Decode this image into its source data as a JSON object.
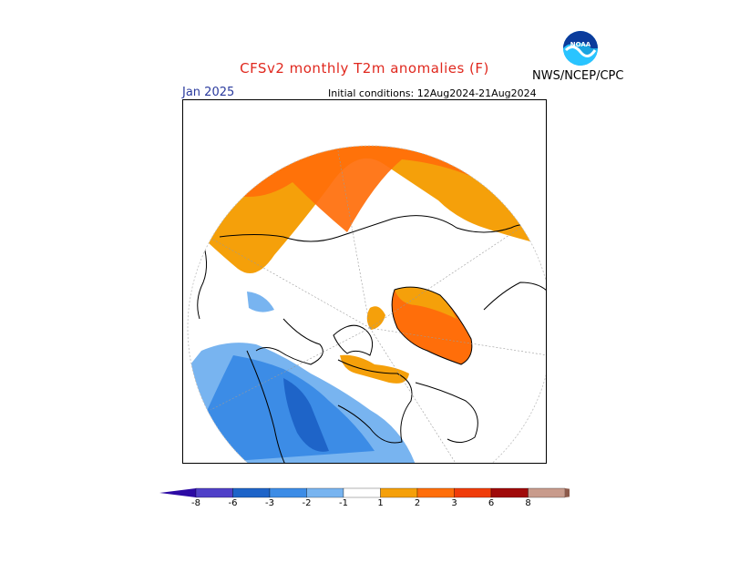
{
  "header": {
    "title": "CFSv2 monthly T2m anomalies (F)",
    "agency": "NWS/NCEP/CPC",
    "logo_text": "NOAA"
  },
  "map": {
    "month": "Jan 2025",
    "initial_conditions": "Initial conditions: 12Aug2024-21Aug2024",
    "projection": "north polar stereographic"
  },
  "legend": {
    "labels": [
      "-8",
      "-6",
      "-3",
      "-2",
      "-1",
      "1",
      "2",
      "3",
      "6",
      "8"
    ],
    "colors": [
      "#2c0aa4",
      "#5040c8",
      "#1e64c8",
      "#3c8ce6",
      "#78b4f0",
      "#ffffff",
      "#f5a00a",
      "#ff6e0a",
      "#f03c0a",
      "#a00a0a",
      "#c89b8c",
      "#8c5a4b"
    ]
  }
}
